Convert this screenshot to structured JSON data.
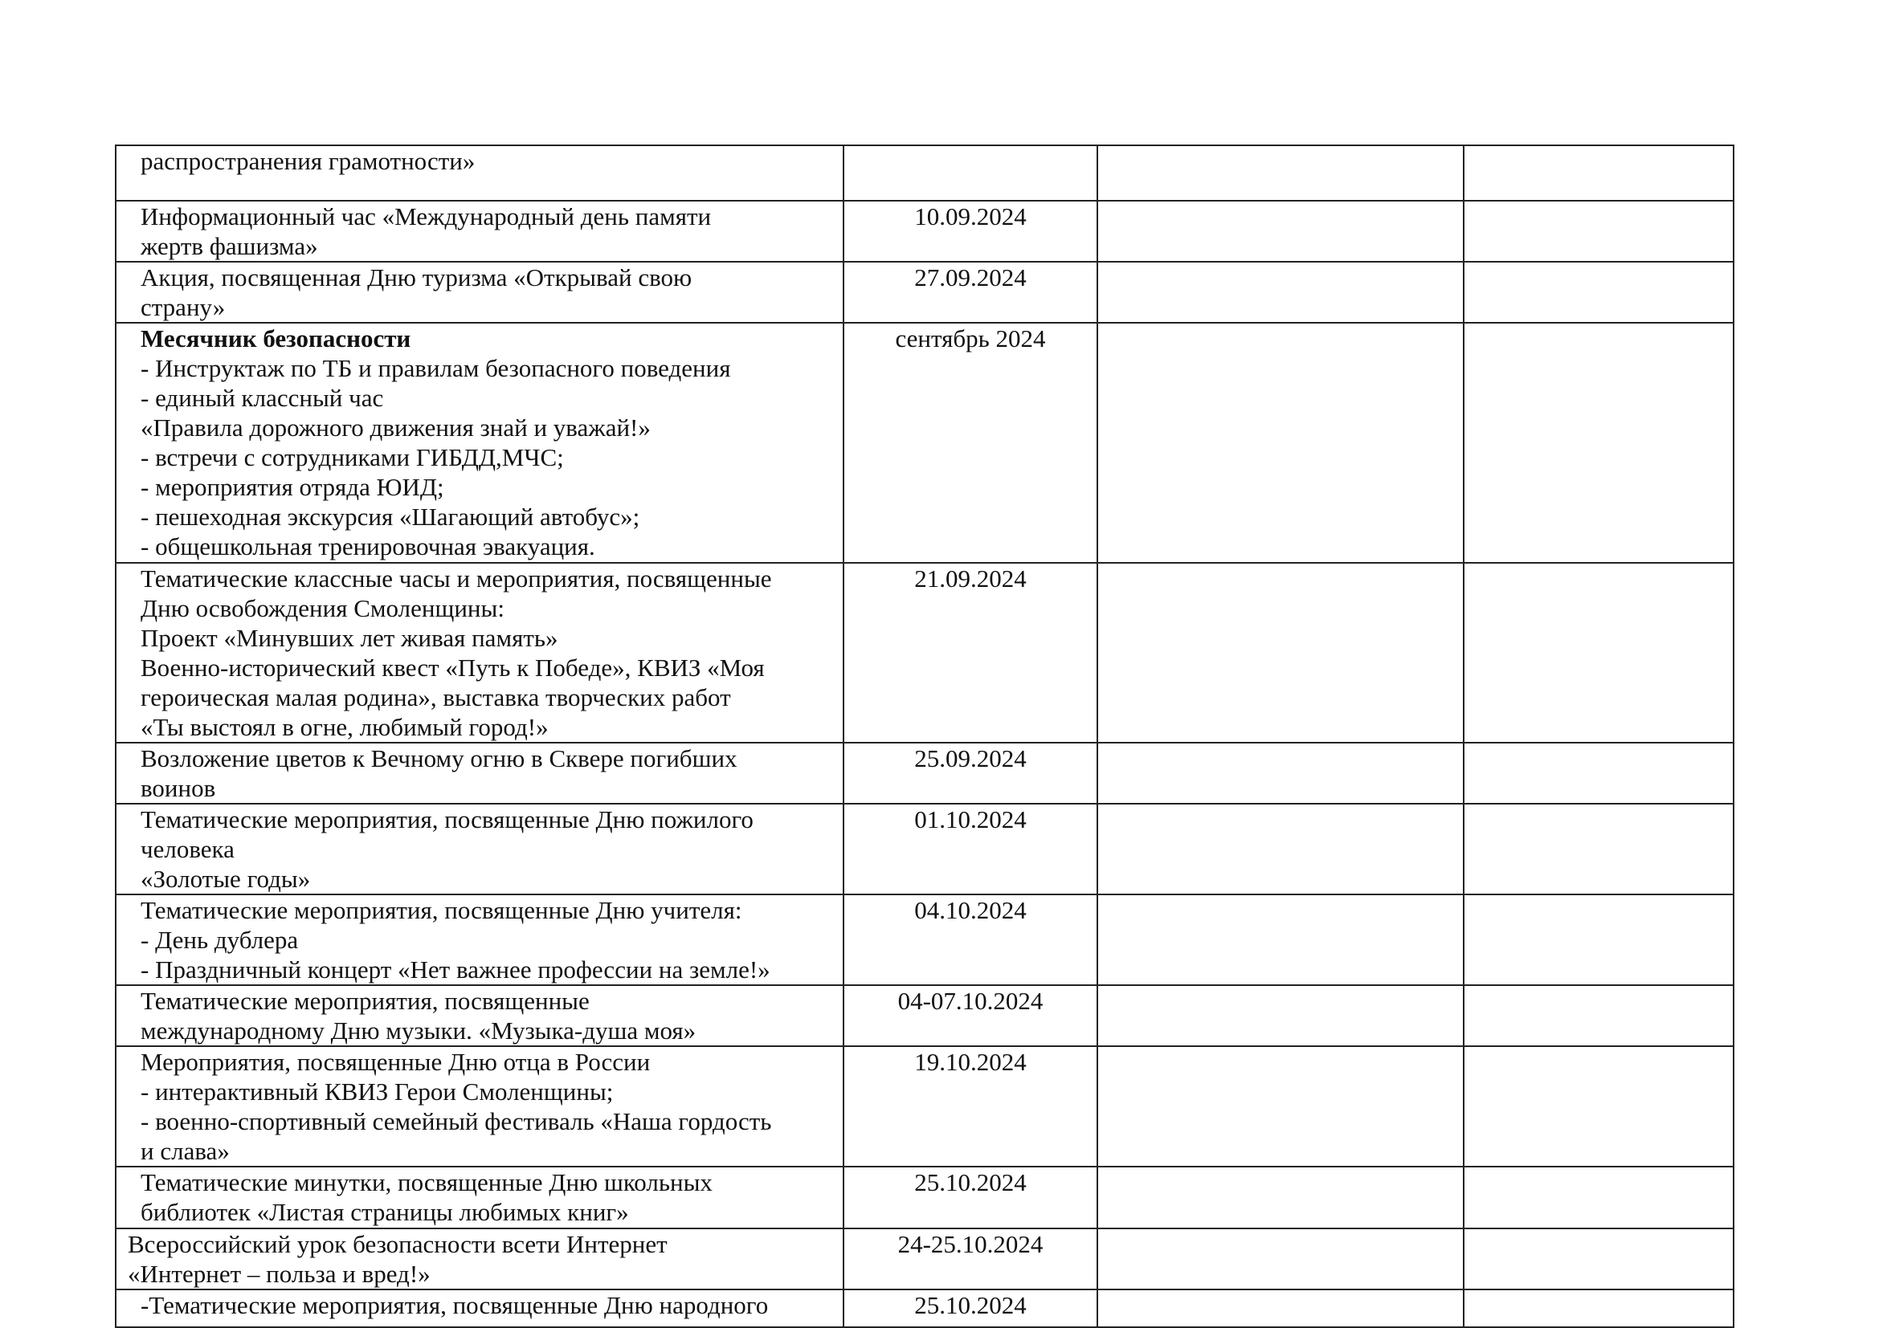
{
  "table": {
    "rows": [
      {
        "lines": [
          "распространения грамотности»"
        ],
        "date": ""
      },
      {
        "lines": [
          "Информационный час «Международный день памяти",
          "жертв фашизма»"
        ],
        "date": "10.09.2024"
      },
      {
        "lines": [
          "Акция, посвященная Дню туризма «Открывай свою",
          "страну»"
        ],
        "date": "27.09.2024"
      },
      {
        "title": "Месячник безопасности",
        "lines": [
          "- Инструктаж по ТБ и правилам безопасного поведения",
          "- единый классный час",
          "«Правила дорожного движения знай и уважай!»",
          "- встречи с сотрудниками ГИБДД,МЧС;",
          "- мероприятия отряда ЮИД;",
          "- пешеходная экскурсия «Шагающий автобус»;",
          "- общешкольная тренировочная эвакуация."
        ],
        "date": "сентябрь 2024"
      },
      {
        "lines": [
          "Тематические классные часы и мероприятия, посвященные",
          "Дню освобождения Смоленщины:",
          "Проект «Минувших лет живая память»",
          "Военно-исторический квест «Путь к Победе», КВИЗ «Моя",
          "героическая малая родина», выставка творческих работ",
          "«Ты выстоял в огне, любимый город!»"
        ],
        "date": "21.09.2024"
      },
      {
        "lines": [
          "Возложение цветов к Вечному огню в Сквере погибших",
          "воинов"
        ],
        "date": "25.09.2024"
      },
      {
        "lines": [
          "Тематические мероприятия, посвященные Дню пожилого",
          "человека",
          "«Золотые годы»"
        ],
        "date": "01.10.2024"
      },
      {
        "lines": [
          "Тематические мероприятия, посвященные Дню учителя:",
          "- День дублера",
          "- Праздничный концерт «Нет важнее профессии на земле!»"
        ],
        "date": "04.10.2024"
      },
      {
        "lines": [
          "Тематические мероприятия, посвященные",
          "международному Дню музыки. «Музыка-душа моя»"
        ],
        "date": "04-07.10.2024"
      },
      {
        "lines": [
          "Мероприятия, посвященные Дню отца в России",
          "- интерактивный КВИЗ Герои Смоленщины;",
          "- военно-спортивный семейный фестиваль «Наша гордость",
          "и слава»"
        ],
        "date": "19.10.2024"
      },
      {
        "lines": [
          "Тематические минутки, посвященные Дню школьных",
          "библиотек «Листая страницы любимых книг»"
        ],
        "date": "25.10.2024"
      },
      {
        "lines": [
          "Всероссийский урок безопасности всети Интернет",
          "«Интернет – польза и вред!»"
        ],
        "date": "24-25.10.2024"
      },
      {
        "lines": [
          "-Тематические мероприятия, посвященные Дню народного"
        ],
        "date": "25.10.2024"
      }
    ]
  }
}
